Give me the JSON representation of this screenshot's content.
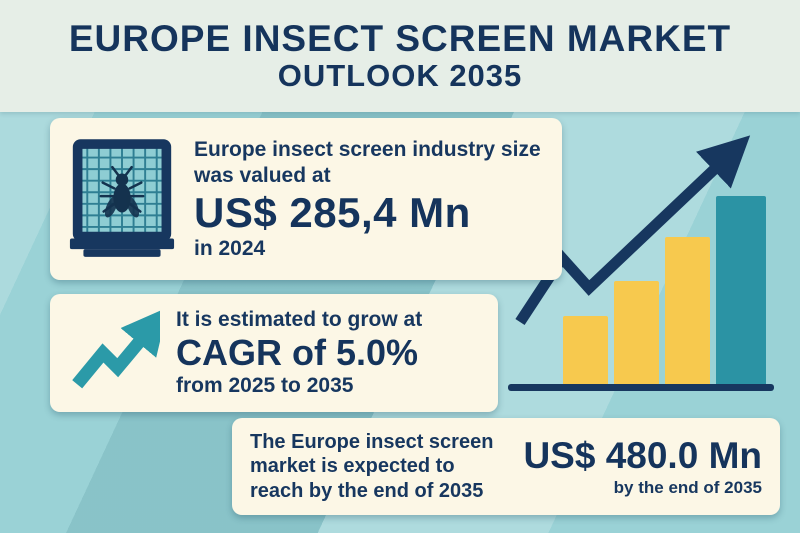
{
  "title": {
    "line1": "EUROPE INSECT SCREEN MARKET",
    "line2": "OUTLOOK 2035"
  },
  "cards": [
    {
      "icon": "insect-screen-icon",
      "lead": "Europe insect screen industry size was valued at",
      "value": "US$ 285,4 Mn",
      "suffix": "in 2024"
    },
    {
      "icon": "growth-arrow-icon",
      "lead": "It is estimated to grow at",
      "value": "CAGR of 5.0%",
      "suffix": "from 2025 to 2035"
    },
    {
      "lead": "The Europe insect screen market is expected to reach by the end of 2035",
      "value": "US$ 480.0 Mn",
      "suffix": "by the end of 2035"
    }
  ],
  "colors": {
    "background": "#9ad2d6",
    "header_bg": "#e6eee7",
    "card_bg": "#fcf7e6",
    "navy": "#17375f",
    "teal_accent": "#2b9aa8",
    "bar_yellow": "#f7c94e",
    "bar_teal": "#2b93a4"
  },
  "chart_data": {
    "type": "bar",
    "title": "Europe Insect Screen Market Outlook 2035",
    "categories": [
      "bar-1",
      "bar-2",
      "bar-3",
      "bar-4"
    ],
    "values": [
      36,
      55,
      78,
      100
    ],
    "bar_colors": [
      "#f7c94e",
      "#f7c94e",
      "#f7c94e",
      "#2b93a4"
    ],
    "ylim": [
      0,
      100
    ],
    "xlabel": "",
    "ylabel": "",
    "axis_tick_labels_visible": false,
    "grid": false,
    "legend": false,
    "overlay": "upward trend arrow",
    "annotations": [
      {
        "label": "Market value in 2024",
        "value": "US$ 285,4 Mn"
      },
      {
        "label": "CAGR from 2025 to 2035",
        "value": "5.0%"
      },
      {
        "label": "Expected value by end of 2035",
        "value": "US$ 480.0 Mn"
      }
    ]
  }
}
